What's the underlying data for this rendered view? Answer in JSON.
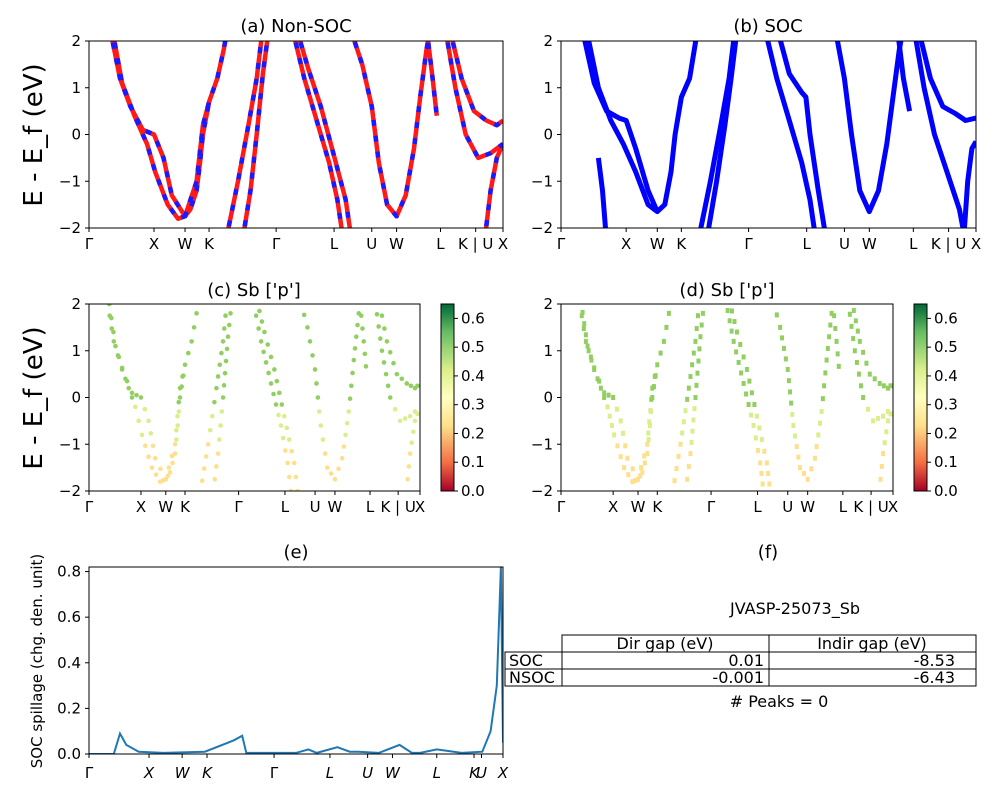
{
  "panels": {
    "a": {
      "title": "(a) Non-SOC"
    },
    "b": {
      "title": "(b) SOC"
    },
    "c": {
      "title": "(c)  Sb ['p']"
    },
    "d": {
      "title": "(d) Sb ['p']"
    },
    "e": {
      "title": "(e)"
    },
    "f": {
      "title": "(f)"
    }
  },
  "y_label_band": "E - E_f (eV)",
  "band_y_ticks": [
    "2",
    "1",
    "0",
    "−1",
    "−2"
  ],
  "kpath_labels": [
    "Γ",
    "X",
    "W",
    "K",
    "Γ",
    "L",
    "U",
    "W",
    "L",
    "K | U",
    "X"
  ],
  "colorbar_ticks": [
    "0.6",
    "0.5",
    "0.4",
    "0.3",
    "0.2",
    "0.1",
    "0.0"
  ],
  "spillage": {
    "ylabel": "SOC spillage (chg. den. unit)",
    "yticks": [
      "0.8",
      "0.6",
      "0.4",
      "0.2",
      "0.0"
    ],
    "xticks": [
      "Γ",
      "X",
      "W",
      "K",
      "Γ",
      "L",
      "U",
      "W",
      "L",
      "K",
      "U",
      "X"
    ]
  },
  "info": {
    "material_id": "JVASP-25073_Sb",
    "table_headers": [
      "Dir gap (eV)",
      "Indir gap (eV)"
    ],
    "rows": [
      {
        "label": "SOC",
        "dir": "0.01",
        "indir": "-8.53"
      },
      {
        "label": "NSOC",
        "dir": "-0.001",
        "indir": "-6.43"
      }
    ],
    "peaks": "# Peaks = 0"
  },
  "colors": {
    "nonsoc_line": "#ff1a1a",
    "nonsoc_dash": "#1a1aff",
    "soc_line": "#0000ff",
    "spillage_line": "#1f77b4"
  },
  "chart_data": [
    {
      "type": "line",
      "title": "(a) Non-SOC",
      "ylabel": "E - E_f (eV)",
      "ylim": [
        -2,
        2
      ],
      "categories": [
        "Γ",
        "X",
        "W",
        "K",
        "Γ",
        "L",
        "U",
        "W",
        "L",
        "K | U",
        "X"
      ],
      "series": [
        {
          "values": [
            2.0,
            0.0,
            -1.75,
            0.7,
            2.0,
            -2.0,
            0.0,
            -1.75,
            0.6,
            2.0,
            0.0
          ]
        }
      ]
    },
    {
      "type": "line",
      "title": "(b) SOC",
      "ylim": [
        -2,
        2
      ],
      "categories": [
        "Γ",
        "X",
        "W",
        "K",
        "Γ",
        "L",
        "U",
        "W",
        "L",
        "K | U",
        "X"
      ],
      "series": [
        {
          "values": [
            2.0,
            0.3,
            -1.65,
            0.8,
            2.0,
            -2.0,
            0.8,
            -1.65,
            0.6,
            2.0,
            0.35
          ]
        }
      ]
    },
    {
      "type": "scatter",
      "title": "(c)  Sb ['p']",
      "ylim": [
        -2,
        2
      ],
      "colorbar_range": [
        0.0,
        0.65
      ]
    },
    {
      "type": "scatter",
      "title": "(d) Sb ['p']",
      "ylim": [
        -2,
        2
      ],
      "colorbar_range": [
        0.0,
        0.65
      ]
    },
    {
      "type": "line",
      "title": "(e)",
      "ylabel": "SOC spillage (chg. den. unit)",
      "ylim": [
        0,
        0.82
      ],
      "series": [
        {
          "x": [
            0.0,
            0.06,
            0.075,
            0.09,
            0.12,
            0.18,
            0.28,
            0.35,
            0.37,
            0.38,
            0.42,
            0.5,
            0.53,
            0.55,
            0.6,
            0.63,
            0.65,
            0.7,
            0.75,
            0.78,
            0.8,
            0.84,
            0.9,
            0.95,
            0.97,
            0.985,
            0.995,
            1.0
          ],
          "y": [
            0.0,
            0.0,
            0.09,
            0.04,
            0.01,
            0.005,
            0.01,
            0.06,
            0.08,
            0.005,
            0.005,
            0.005,
            0.02,
            0.005,
            0.03,
            0.01,
            0.01,
            0.005,
            0.04,
            0.005,
            0.005,
            0.02,
            0.005,
            0.01,
            0.1,
            0.3,
            0.82,
            0.05
          ]
        }
      ]
    },
    {
      "type": "table",
      "title": "(f)",
      "columns": [
        "",
        "Dir gap (eV)",
        "Indir gap (eV)"
      ],
      "rows": [
        [
          "SOC",
          "0.01",
          "-8.53"
        ],
        [
          "NSOC",
          "-0.001",
          "-6.43"
        ]
      ]
    }
  ]
}
